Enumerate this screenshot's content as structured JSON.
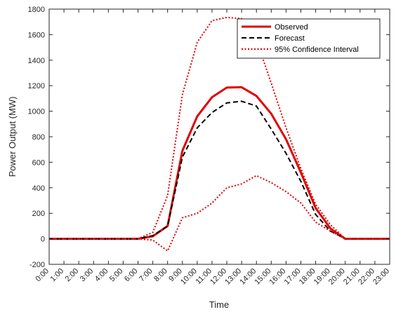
{
  "chart_data": {
    "type": "line",
    "title": "",
    "xlabel": "Time",
    "ylabel": "Power Output (MW)",
    "ylim": [
      -200,
      1800
    ],
    "yticks": [
      -200,
      0,
      200,
      400,
      600,
      800,
      1000,
      1200,
      1400,
      1600,
      1800
    ],
    "grid": false,
    "legend_position": "top-right",
    "categories": [
      "0:00",
      "1:00",
      "2:00",
      "3:00",
      "4:00",
      "5:00",
      "6:00",
      "7:00",
      "8:00",
      "9:00",
      "10:00",
      "11:00",
      "12:00",
      "13:00",
      "14:00",
      "15:00",
      "16:00",
      "17:00",
      "18:00",
      "19:00",
      "20:00",
      "21:00",
      "22:00",
      "23:00"
    ],
    "series": [
      {
        "name": "Observed",
        "color": "#e00000",
        "style": "solid",
        "values": [
          0,
          0,
          0,
          0,
          0,
          0,
          0,
          20,
          100,
          690,
          960,
          1110,
          1185,
          1188,
          1120,
          980,
          780,
          520,
          240,
          80,
          0,
          0,
          0,
          0
        ]
      },
      {
        "name": "Forecast",
        "color": "#000000",
        "style": "dashed",
        "values": [
          0,
          0,
          0,
          0,
          0,
          0,
          0,
          25,
          100,
          640,
          870,
          990,
          1065,
          1078,
          1040,
          860,
          670,
          450,
          190,
          60,
          0,
          0,
          0,
          0
        ]
      },
      {
        "name": "95% Confidence Interval",
        "color": "#e00000",
        "style": "dotted",
        "values": [
          0,
          0,
          0,
          0,
          0,
          0,
          0,
          50,
          340,
          1130,
          1540,
          1710,
          1735,
          1725,
          1560,
          1220,
          870,
          550,
          270,
          110,
          0,
          0,
          0,
          0
        ]
      },
      {
        "name": "",
        "color": "#e00000",
        "style": "dotted",
        "values": [
          0,
          0,
          0,
          0,
          0,
          0,
          0,
          -10,
          -95,
          165,
          200,
          280,
          400,
          430,
          495,
          440,
          370,
          280,
          130,
          60,
          0,
          0,
          0,
          0
        ]
      }
    ]
  }
}
